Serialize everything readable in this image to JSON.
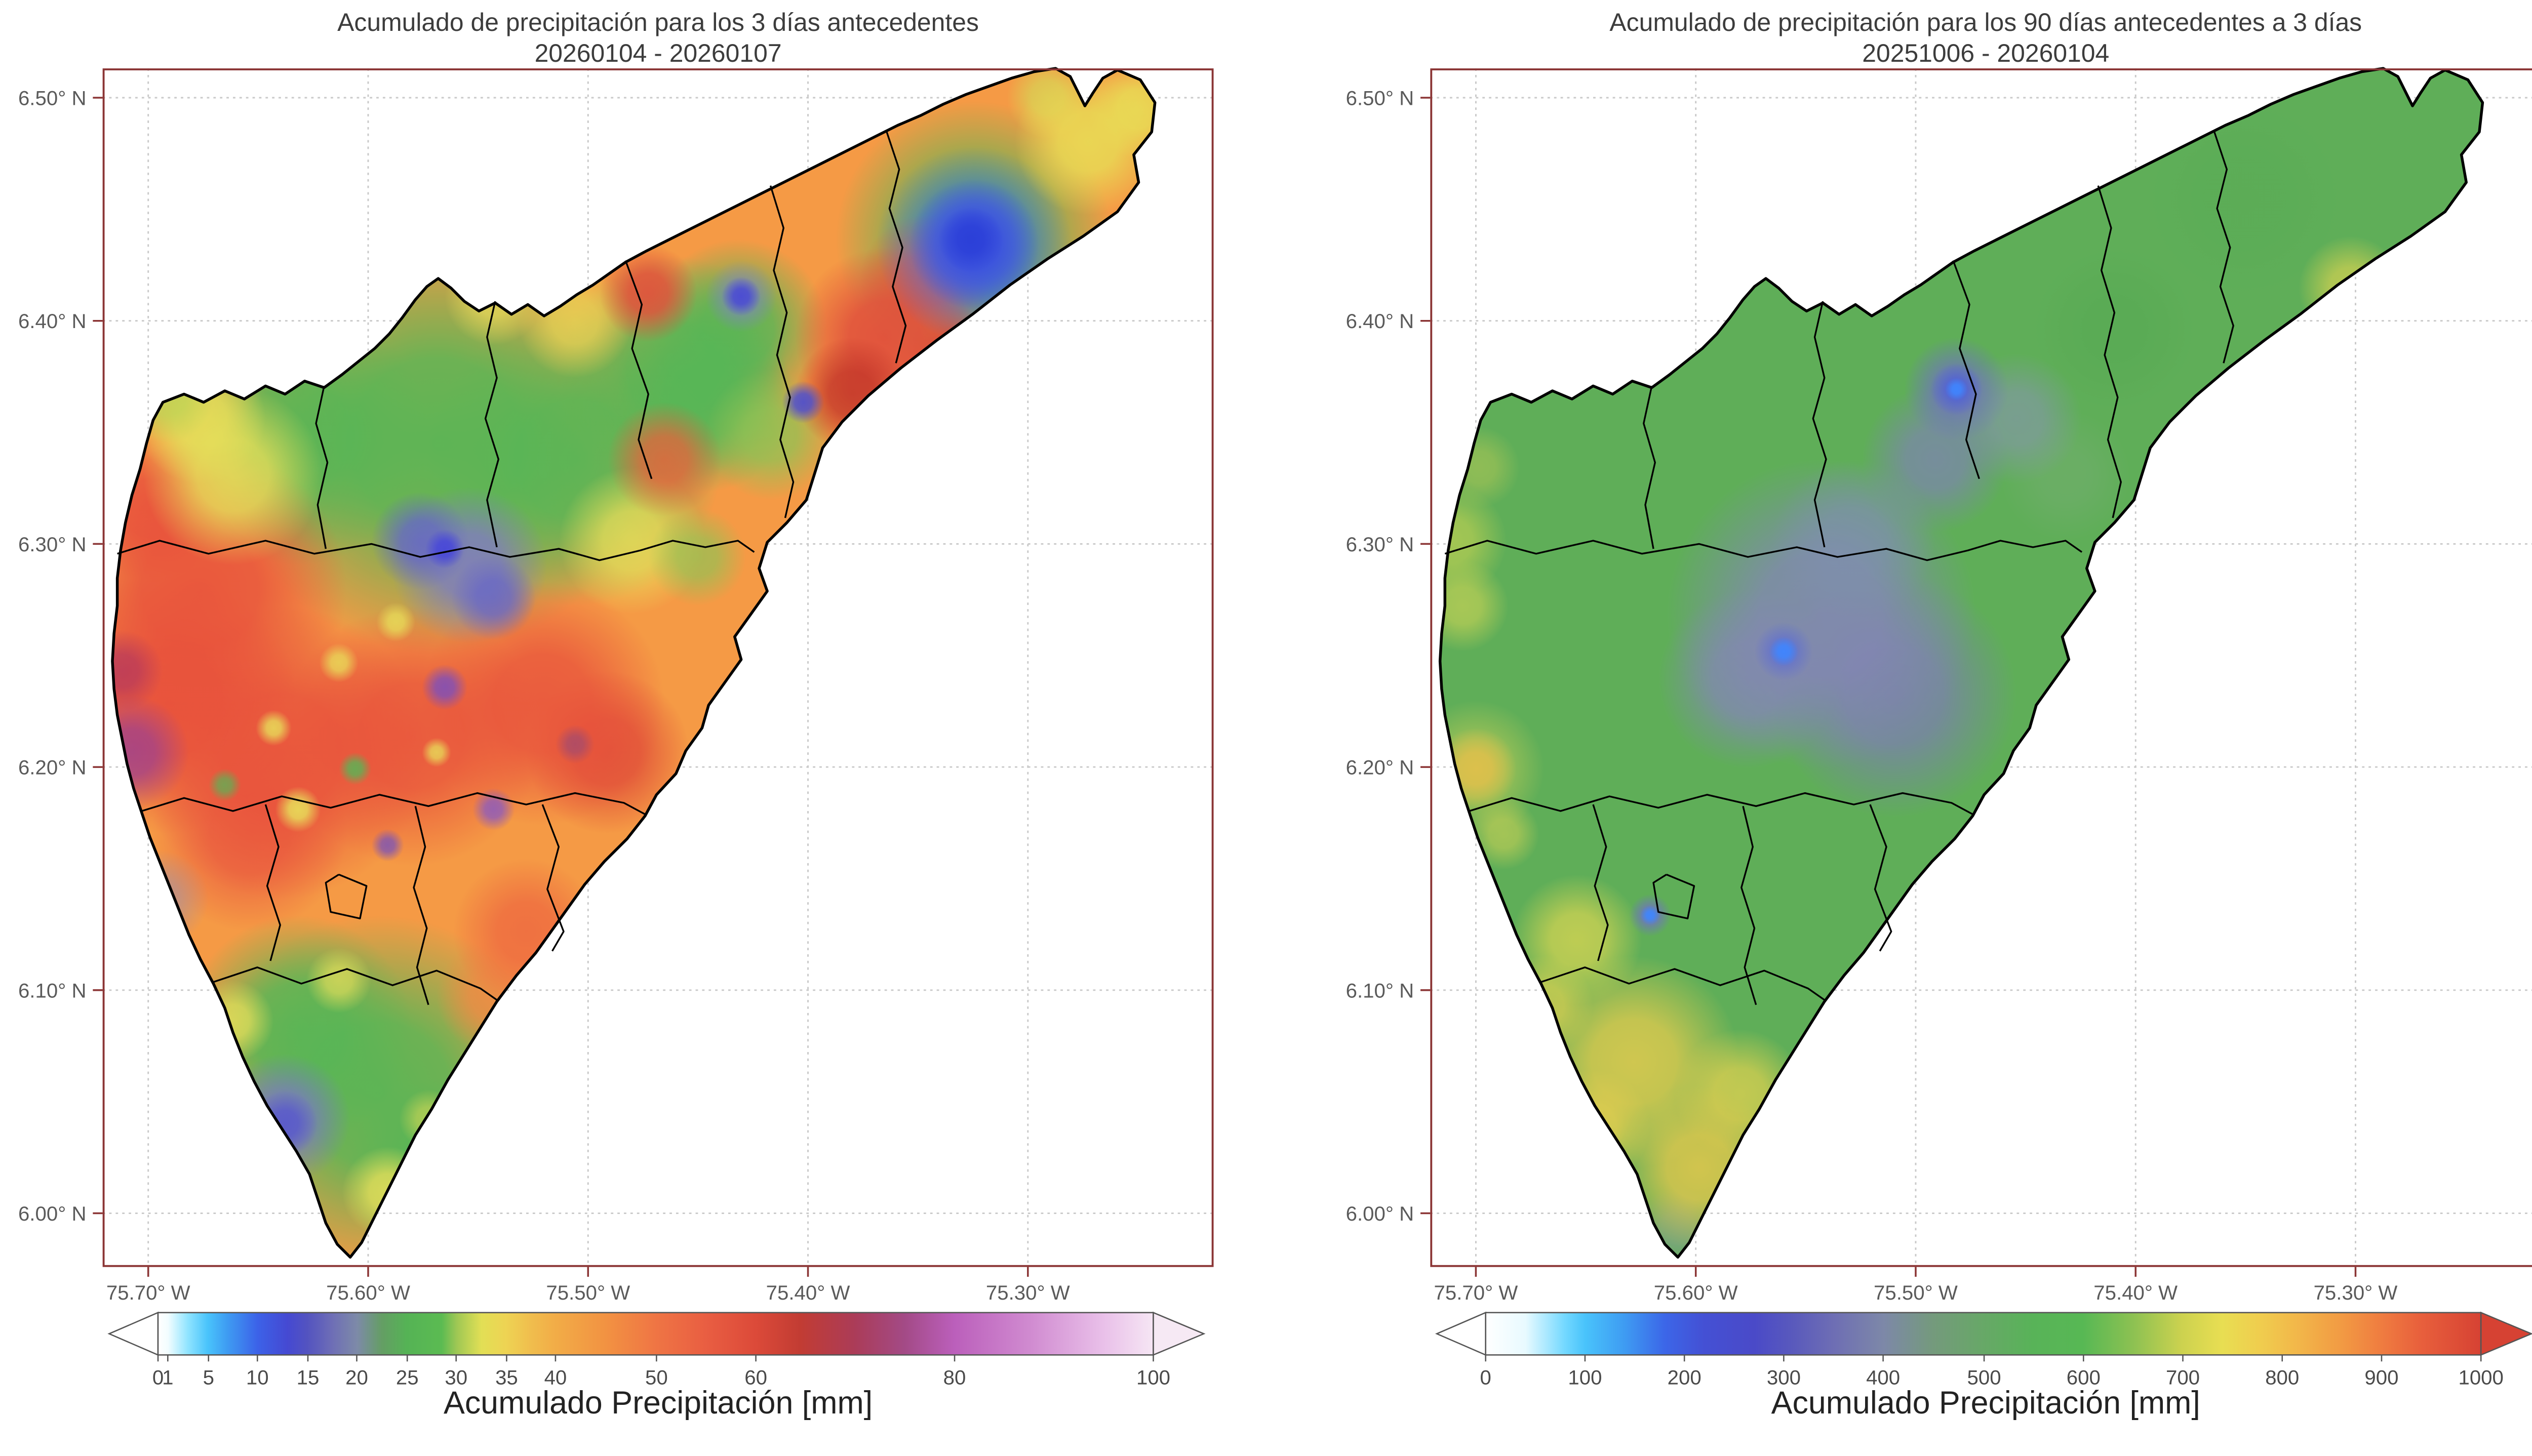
{
  "figure": {
    "background": "#ffffff"
  },
  "panels": [
    {
      "title": "Acumulado de precipitación para los 3 días antecedentes",
      "subtitle": "20260104 - 20260107",
      "colorbar_label": "Acumulado Precipitación [mm]"
    },
    {
      "title": "Acumulado de precipitación para los 90 días antecedentes a 3 días",
      "subtitle": "20251006 - 20260104",
      "colorbar_label": "Acumulado Precipitación [mm]"
    }
  ],
  "axes": {
    "x_ticks": [
      "75.70° W",
      "75.60° W",
      "75.50° W",
      "75.40° W",
      "75.30° W"
    ],
    "y_ticks": [
      "6.50° N",
      "6.40° N",
      "6.30° N",
      "6.20° N",
      "6.10° N",
      "6.00° N"
    ]
  },
  "colorbars": [
    {
      "units": "mm",
      "range": [
        0,
        100
      ],
      "ticks": [
        "0",
        "1",
        "5",
        "10",
        "15",
        "20",
        "25",
        "30",
        "35",
        "40",
        "50",
        "60",
        "80",
        "100"
      ],
      "left_tip": "#ffffff",
      "right_tip": "#f6e9f4",
      "stops": [
        {
          "o": 0,
          "c": "#ffffff"
        },
        {
          "o": 0.01,
          "c": "#f2fdff"
        },
        {
          "o": 0.03,
          "c": "#8fe4ff"
        },
        {
          "o": 0.05,
          "c": "#49c3fb"
        },
        {
          "o": 0.07,
          "c": "#3e9bf2"
        },
        {
          "o": 0.1,
          "c": "#3c62e8"
        },
        {
          "o": 0.13,
          "c": "#4549d2"
        },
        {
          "o": 0.15,
          "c": "#5353c0"
        },
        {
          "o": 0.175,
          "c": "#6e6eb6"
        },
        {
          "o": 0.2,
          "c": "#7d8aa8"
        },
        {
          "o": 0.225,
          "c": "#649e64"
        },
        {
          "o": 0.25,
          "c": "#55b355"
        },
        {
          "o": 0.285,
          "c": "#5bbb52"
        },
        {
          "o": 0.3,
          "c": "#9ec754"
        },
        {
          "o": 0.325,
          "c": "#e2df55"
        },
        {
          "o": 0.35,
          "c": "#eed353"
        },
        {
          "o": 0.375,
          "c": "#f0bd4d"
        },
        {
          "o": 0.4,
          "c": "#f2ac47"
        },
        {
          "o": 0.45,
          "c": "#f29242"
        },
        {
          "o": 0.5,
          "c": "#ef7544"
        },
        {
          "o": 0.55,
          "c": "#e95e42"
        },
        {
          "o": 0.6,
          "c": "#dc4a39"
        },
        {
          "o": 0.645,
          "c": "#c23c33"
        },
        {
          "o": 0.7,
          "c": "#ab3c58"
        },
        {
          "o": 0.75,
          "c": "#a34a86"
        },
        {
          "o": 0.8,
          "c": "#bb5fbb"
        },
        {
          "o": 0.875,
          "c": "#d08ad0"
        },
        {
          "o": 0.95,
          "c": "#e9c0e9"
        },
        {
          "o": 1,
          "c": "#f6e6f4"
        }
      ]
    },
    {
      "units": "mm",
      "range": [
        0,
        1000
      ],
      "ticks": [
        "0",
        "100",
        "200",
        "300",
        "400",
        "500",
        "600",
        "700",
        "800",
        "900",
        "1000"
      ],
      "left_tip": "#ffffff",
      "right_tip": "#d64233",
      "stops": [
        {
          "o": 0,
          "c": "#ffffff"
        },
        {
          "o": 0.04,
          "c": "#e8faff"
        },
        {
          "o": 0.08,
          "c": "#72d8ff"
        },
        {
          "o": 0.1,
          "c": "#49c3fb"
        },
        {
          "o": 0.14,
          "c": "#3e9bf2"
        },
        {
          "o": 0.18,
          "c": "#3c66e8"
        },
        {
          "o": 0.22,
          "c": "#4450d4"
        },
        {
          "o": 0.27,
          "c": "#4a4ac8"
        },
        {
          "o": 0.31,
          "c": "#5a5abc"
        },
        {
          "o": 0.35,
          "c": "#6e6eb4"
        },
        {
          "o": 0.4,
          "c": "#7d88a8"
        },
        {
          "o": 0.45,
          "c": "#749a7c"
        },
        {
          "o": 0.5,
          "c": "#67a867"
        },
        {
          "o": 0.55,
          "c": "#58b358"
        },
        {
          "o": 0.6,
          "c": "#57b854"
        },
        {
          "o": 0.65,
          "c": "#8cc152"
        },
        {
          "o": 0.7,
          "c": "#cdd24f"
        },
        {
          "o": 0.74,
          "c": "#e8de52"
        },
        {
          "o": 0.78,
          "c": "#f0cc4e"
        },
        {
          "o": 0.82,
          "c": "#f2b449"
        },
        {
          "o": 0.86,
          "c": "#f29a43"
        },
        {
          "o": 0.9,
          "c": "#ef7c40"
        },
        {
          "o": 0.94,
          "c": "#e85f3c"
        },
        {
          "o": 1,
          "c": "#d64233"
        }
      ]
    }
  ],
  "colors": {
    "frame": "#8b3535",
    "grid": "#c9c9c9",
    "tick_label": "#5a5a5a",
    "title": "#3c3c3c",
    "boundary": "#000000",
    "land_base_left": "#f59a45",
    "land_base_right": "#5fae58"
  }
}
